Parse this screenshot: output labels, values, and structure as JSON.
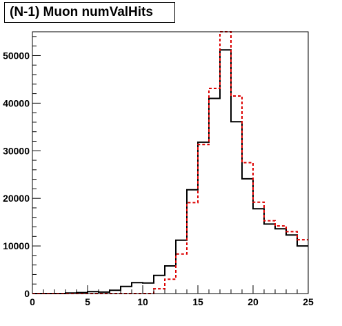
{
  "chart_data": {
    "type": "histogram",
    "title": "(N-1) Muon numValHits",
    "xlabel": "",
    "ylabel": "",
    "xlim": [
      0,
      25
    ],
    "ylim": [
      0,
      55000
    ],
    "bin_width": 1,
    "x_ticks": [
      {
        "value": 0,
        "label": "0"
      },
      {
        "value": 5,
        "label": "5"
      },
      {
        "value": 10,
        "label": "10"
      },
      {
        "value": 15,
        "label": "15"
      },
      {
        "value": 20,
        "label": "20"
      },
      {
        "value": 25,
        "label": "25"
      }
    ],
    "y_ticks": [
      {
        "value": 10000,
        "label": "10000"
      },
      {
        "value": 20000,
        "label": "20000"
      },
      {
        "value": 30000,
        "label": "30000"
      },
      {
        "value": 40000,
        "label": "40000"
      },
      {
        "value": 50000,
        "label": "50000"
      }
    ],
    "series": [
      {
        "color": "#000000",
        "style": "solid",
        "values": [
          0,
          0,
          0,
          100,
          200,
          400,
          300,
          700,
          1500,
          2300,
          2200,
          3800,
          5800,
          11200,
          21800,
          31800,
          41000,
          51200,
          36100,
          24100,
          17800,
          14600,
          13600,
          12300,
          10000
        ]
      },
      {
        "color": "#dd0000",
        "style": "dashed",
        "values": [
          0,
          0,
          0,
          0,
          0,
          0,
          0,
          0,
          0,
          0,
          0,
          1000,
          3000,
          8300,
          19100,
          31300,
          43100,
          55000,
          41500,
          27500,
          19200,
          15300,
          14200,
          13000,
          11300
        ]
      }
    ]
  }
}
